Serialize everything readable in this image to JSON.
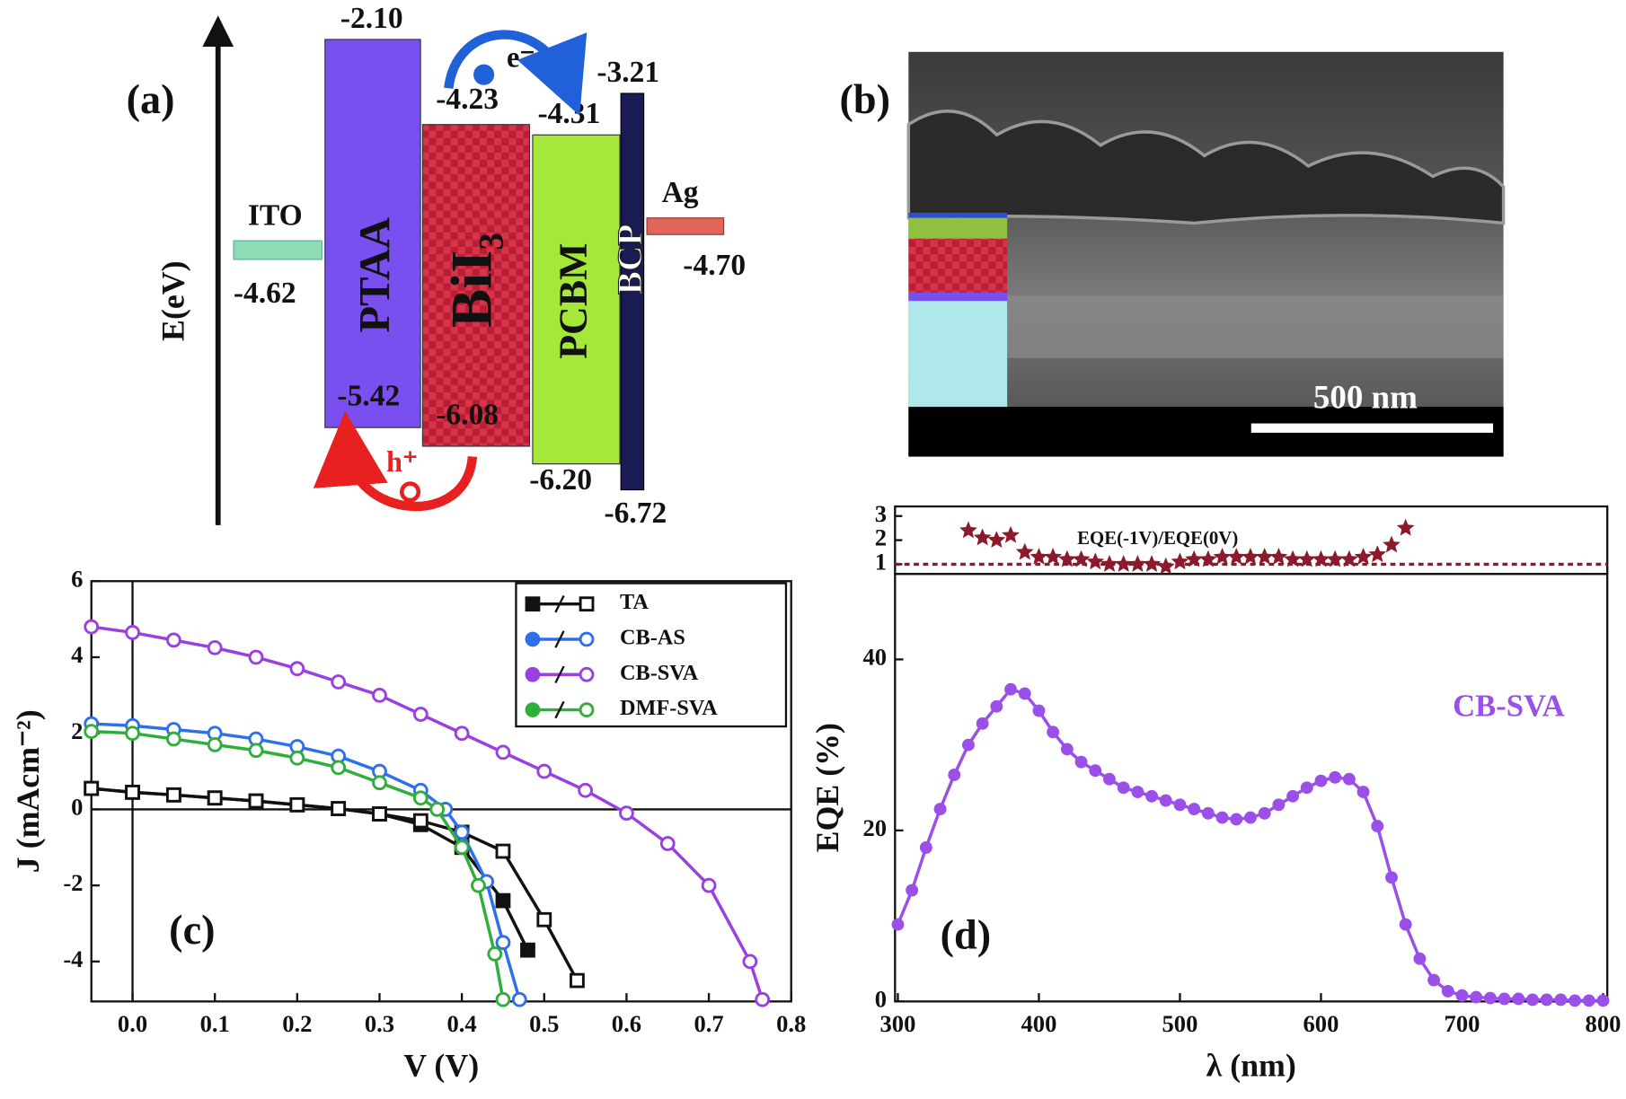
{
  "panel_a": {
    "label": "(a)",
    "axis_label": "E(eV)",
    "electron": "e⁻",
    "hole": "h⁺",
    "layers": [
      {
        "name": "ITO",
        "level": "-4.62"
      },
      {
        "name": "PTAA",
        "lumo": "-2.10",
        "homo": "-5.42"
      },
      {
        "name": "BiI₃",
        "lumo": "-4.23",
        "homo": "-6.08"
      },
      {
        "name": "PCBM",
        "lumo": "-4.31",
        "homo": "-6.20"
      },
      {
        "name": "BCP",
        "lumo": "-3.21",
        "homo": "-6.72"
      },
      {
        "name": "Ag",
        "level": "-4.70"
      }
    ]
  },
  "panel_b": {
    "label": "(b)",
    "scale_bar": "500 nm"
  },
  "chart_data": [
    {
      "type": "line",
      "panel_label": "(c)",
      "x_label": "V (V)",
      "y_label": "J (mAcm⁻²)",
      "xlim": [
        -0.05,
        0.8
      ],
      "ylim": [
        -5.05,
        6
      ],
      "xticks": [
        {
          "value": 0,
          "label": "0.0"
        },
        0.1,
        0.2,
        0.3,
        0.4,
        0.5,
        0.6,
        0.7,
        0.8
      ],
      "yticks": [
        -4,
        -2,
        0,
        2,
        4,
        6
      ],
      "legend": "upper right",
      "series": [
        {
          "name": "TA",
          "color": "#111111",
          "marker": "square",
          "curves": [
            {
              "style": "filled",
              "x": [
                -0.05,
                0,
                0.05,
                0.1,
                0.15,
                0.2,
                0.25,
                0.3,
                0.35,
                0.4,
                0.45,
                0.48
              ],
              "values": [
                0.55,
                0.45,
                0.38,
                0.3,
                0.22,
                0.12,
                0.02,
                -0.12,
                -0.4,
                -1.0,
                -2.4,
                -3.7
              ]
            },
            {
              "style": "open",
              "x": [
                -0.05,
                0,
                0.05,
                0.1,
                0.15,
                0.2,
                0.25,
                0.3,
                0.35,
                0.4,
                0.45,
                0.5,
                0.54
              ],
              "values": [
                0.55,
                0.45,
                0.38,
                0.3,
                0.22,
                0.12,
                0.02,
                -0.12,
                -0.3,
                -0.6,
                -1.1,
                -2.9,
                -4.5
              ]
            }
          ]
        },
        {
          "name": "CB-AS",
          "color": "#2f6fe8",
          "marker": "circle",
          "curves": [
            {
              "style": "open",
              "x": [
                -0.05,
                0,
                0.05,
                0.1,
                0.15,
                0.2,
                0.25,
                0.3,
                0.35,
                0.38,
                0.4,
                0.43,
                0.45,
                0.47
              ],
              "values": [
                2.25,
                2.2,
                2.1,
                2.0,
                1.85,
                1.65,
                1.4,
                1.0,
                0.5,
                0,
                -0.6,
                -1.9,
                -3.5,
                -5.0
              ]
            }
          ]
        },
        {
          "name": "CB-SVA",
          "color": "#9a3fe0",
          "marker": "circle",
          "curves": [
            {
              "style": "open",
              "x": [
                -0.05,
                0,
                0.05,
                0.1,
                0.15,
                0.2,
                0.25,
                0.3,
                0.35,
                0.4,
                0.45,
                0.5,
                0.55,
                0.6,
                0.65,
                0.7,
                0.75,
                0.765
              ],
              "values": [
                4.8,
                4.65,
                4.45,
                4.25,
                4.0,
                3.7,
                3.35,
                3.0,
                2.5,
                2.0,
                1.5,
                1.0,
                0.5,
                -0.1,
                -0.9,
                -2.0,
                -4.0,
                -5.0
              ]
            }
          ]
        },
        {
          "name": "DMF-SVA",
          "color": "#2fae3a",
          "marker": "circle",
          "curves": [
            {
              "style": "open",
              "x": [
                -0.05,
                0,
                0.05,
                0.1,
                0.15,
                0.2,
                0.25,
                0.3,
                0.35,
                0.37,
                0.4,
                0.42,
                0.44,
                0.45
              ],
              "values": [
                2.05,
                2.0,
                1.85,
                1.7,
                1.55,
                1.35,
                1.1,
                0.7,
                0.3,
                0,
                -1.0,
                -2.0,
                -3.8,
                -5.0
              ]
            }
          ]
        }
      ]
    },
    {
      "type": "line",
      "panel_label": "(d)",
      "x_label": "λ (nm)",
      "y_label": "EQE (%)",
      "xlim": [
        298,
        803
      ],
      "ylim": [
        0,
        50
      ],
      "xticks": [
        300,
        400,
        500,
        600,
        700,
        800
      ],
      "yticks": [
        0,
        20,
        40
      ],
      "series": [
        {
          "name": "CB-SVA",
          "color": "#9a4fe8",
          "x": [
            300,
            310,
            320,
            330,
            340,
            350,
            360,
            370,
            380,
            390,
            400,
            410,
            420,
            430,
            440,
            450,
            460,
            470,
            480,
            490,
            500,
            510,
            520,
            530,
            540,
            550,
            560,
            570,
            580,
            590,
            600,
            610,
            620,
            630,
            640,
            650,
            660,
            670,
            680,
            690,
            700,
            710,
            720,
            730,
            740,
            750,
            760,
            770,
            780,
            790,
            800
          ],
          "values": [
            9,
            13,
            18,
            22.5,
            26.5,
            30,
            32.5,
            34.5,
            36.5,
            36,
            34,
            31.5,
            29.5,
            28,
            27,
            26,
            25,
            24.5,
            24,
            23.5,
            23,
            22.5,
            22,
            21.5,
            21.3,
            21.5,
            22,
            23,
            24,
            25,
            25.8,
            26.2,
            26,
            24.5,
            20.5,
            14.5,
            9,
            5,
            2.5,
            1.2,
            0.7,
            0.5,
            0.4,
            0.3,
            0.3,
            0.2,
            0.2,
            0.2,
            0.1,
            0.1,
            0.1
          ]
        }
      ],
      "inset": {
        "label": "EQE(-1V)/EQE(0V)",
        "color": "#8b1a2a",
        "ylim": [
          0.6,
          3.4
        ],
        "yticks": [
          1,
          2,
          3
        ],
        "reference": 1,
        "x": [
          350,
          360,
          370,
          380,
          390,
          400,
          410,
          420,
          430,
          440,
          450,
          460,
          470,
          480,
          490,
          500,
          510,
          520,
          530,
          540,
          550,
          560,
          570,
          580,
          590,
          600,
          610,
          620,
          630,
          640,
          650,
          660
        ],
        "values": [
          2.4,
          2.1,
          2.0,
          2.2,
          1.5,
          1.3,
          1.3,
          1.2,
          1.2,
          1.1,
          1.0,
          1.0,
          1.0,
          1.0,
          0.9,
          1.1,
          1.2,
          1.2,
          1.3,
          1.3,
          1.3,
          1.3,
          1.3,
          1.2,
          1.2,
          1.2,
          1.2,
          1.2,
          1.3,
          1.4,
          1.8,
          2.5
        ]
      }
    }
  ]
}
